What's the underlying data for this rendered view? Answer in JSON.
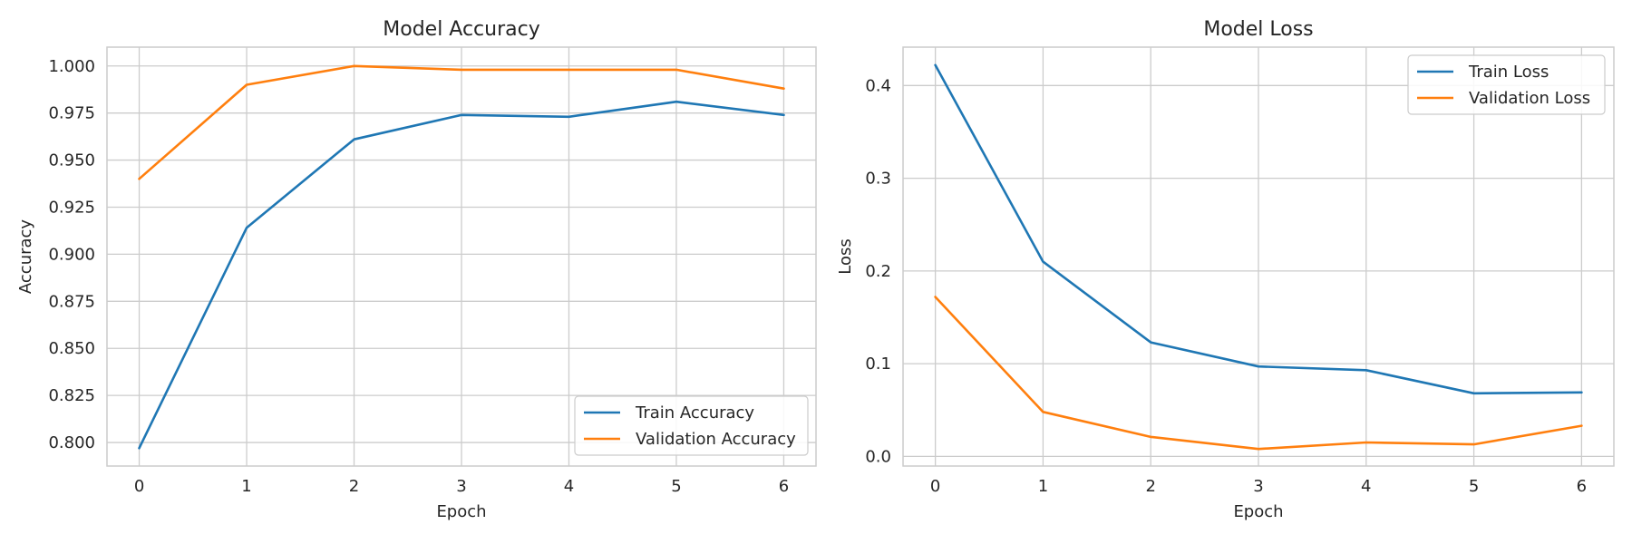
{
  "chart_data": [
    {
      "type": "line",
      "title": "Model Accuracy",
      "xlabel": "Epoch",
      "ylabel": "Accuracy",
      "x": [
        0,
        1,
        2,
        3,
        4,
        5,
        6
      ],
      "xlim": [
        -0.3,
        6.3
      ],
      "ylim": [
        0.7875,
        1.01
      ],
      "xticks": [
        0,
        1,
        2,
        3,
        4,
        5,
        6
      ],
      "yticks": [
        0.8,
        0.825,
        0.85,
        0.875,
        0.9,
        0.925,
        0.95,
        0.975,
        1.0
      ],
      "ytick_labels": [
        "0.800",
        "0.825",
        "0.850",
        "0.875",
        "0.900",
        "0.925",
        "0.950",
        "0.975",
        "1.000"
      ],
      "grid": true,
      "legend_position": "lower-right",
      "series": [
        {
          "name": "Train Accuracy",
          "color": "#1f77b4",
          "values": [
            0.797,
            0.914,
            0.961,
            0.974,
            0.973,
            0.981,
            0.974
          ]
        },
        {
          "name": "Validation Accuracy",
          "color": "#ff7f0e",
          "values": [
            0.94,
            0.99,
            1.0,
            0.998,
            0.998,
            0.998,
            0.988
          ]
        }
      ]
    },
    {
      "type": "line",
      "title": "Model Loss",
      "xlabel": "Epoch",
      "ylabel": "Loss",
      "x": [
        0,
        1,
        2,
        3,
        4,
        5,
        6
      ],
      "xlim": [
        -0.3,
        6.3
      ],
      "ylim": [
        -0.0104,
        0.4414
      ],
      "xticks": [
        0,
        1,
        2,
        3,
        4,
        5,
        6
      ],
      "yticks": [
        0.0,
        0.1,
        0.2,
        0.3,
        0.4
      ],
      "ytick_labels": [
        "0.0",
        "0.1",
        "0.2",
        "0.3",
        "0.4"
      ],
      "grid": true,
      "legend_position": "upper-right",
      "series": [
        {
          "name": "Train Loss",
          "color": "#1f77b4",
          "values": [
            0.422,
            0.21,
            0.123,
            0.097,
            0.093,
            0.068,
            0.069
          ]
        },
        {
          "name": "Validation Loss",
          "color": "#ff7f0e",
          "values": [
            0.172,
            0.048,
            0.021,
            0.008,
            0.015,
            0.013,
            0.033
          ]
        }
      ]
    }
  ]
}
